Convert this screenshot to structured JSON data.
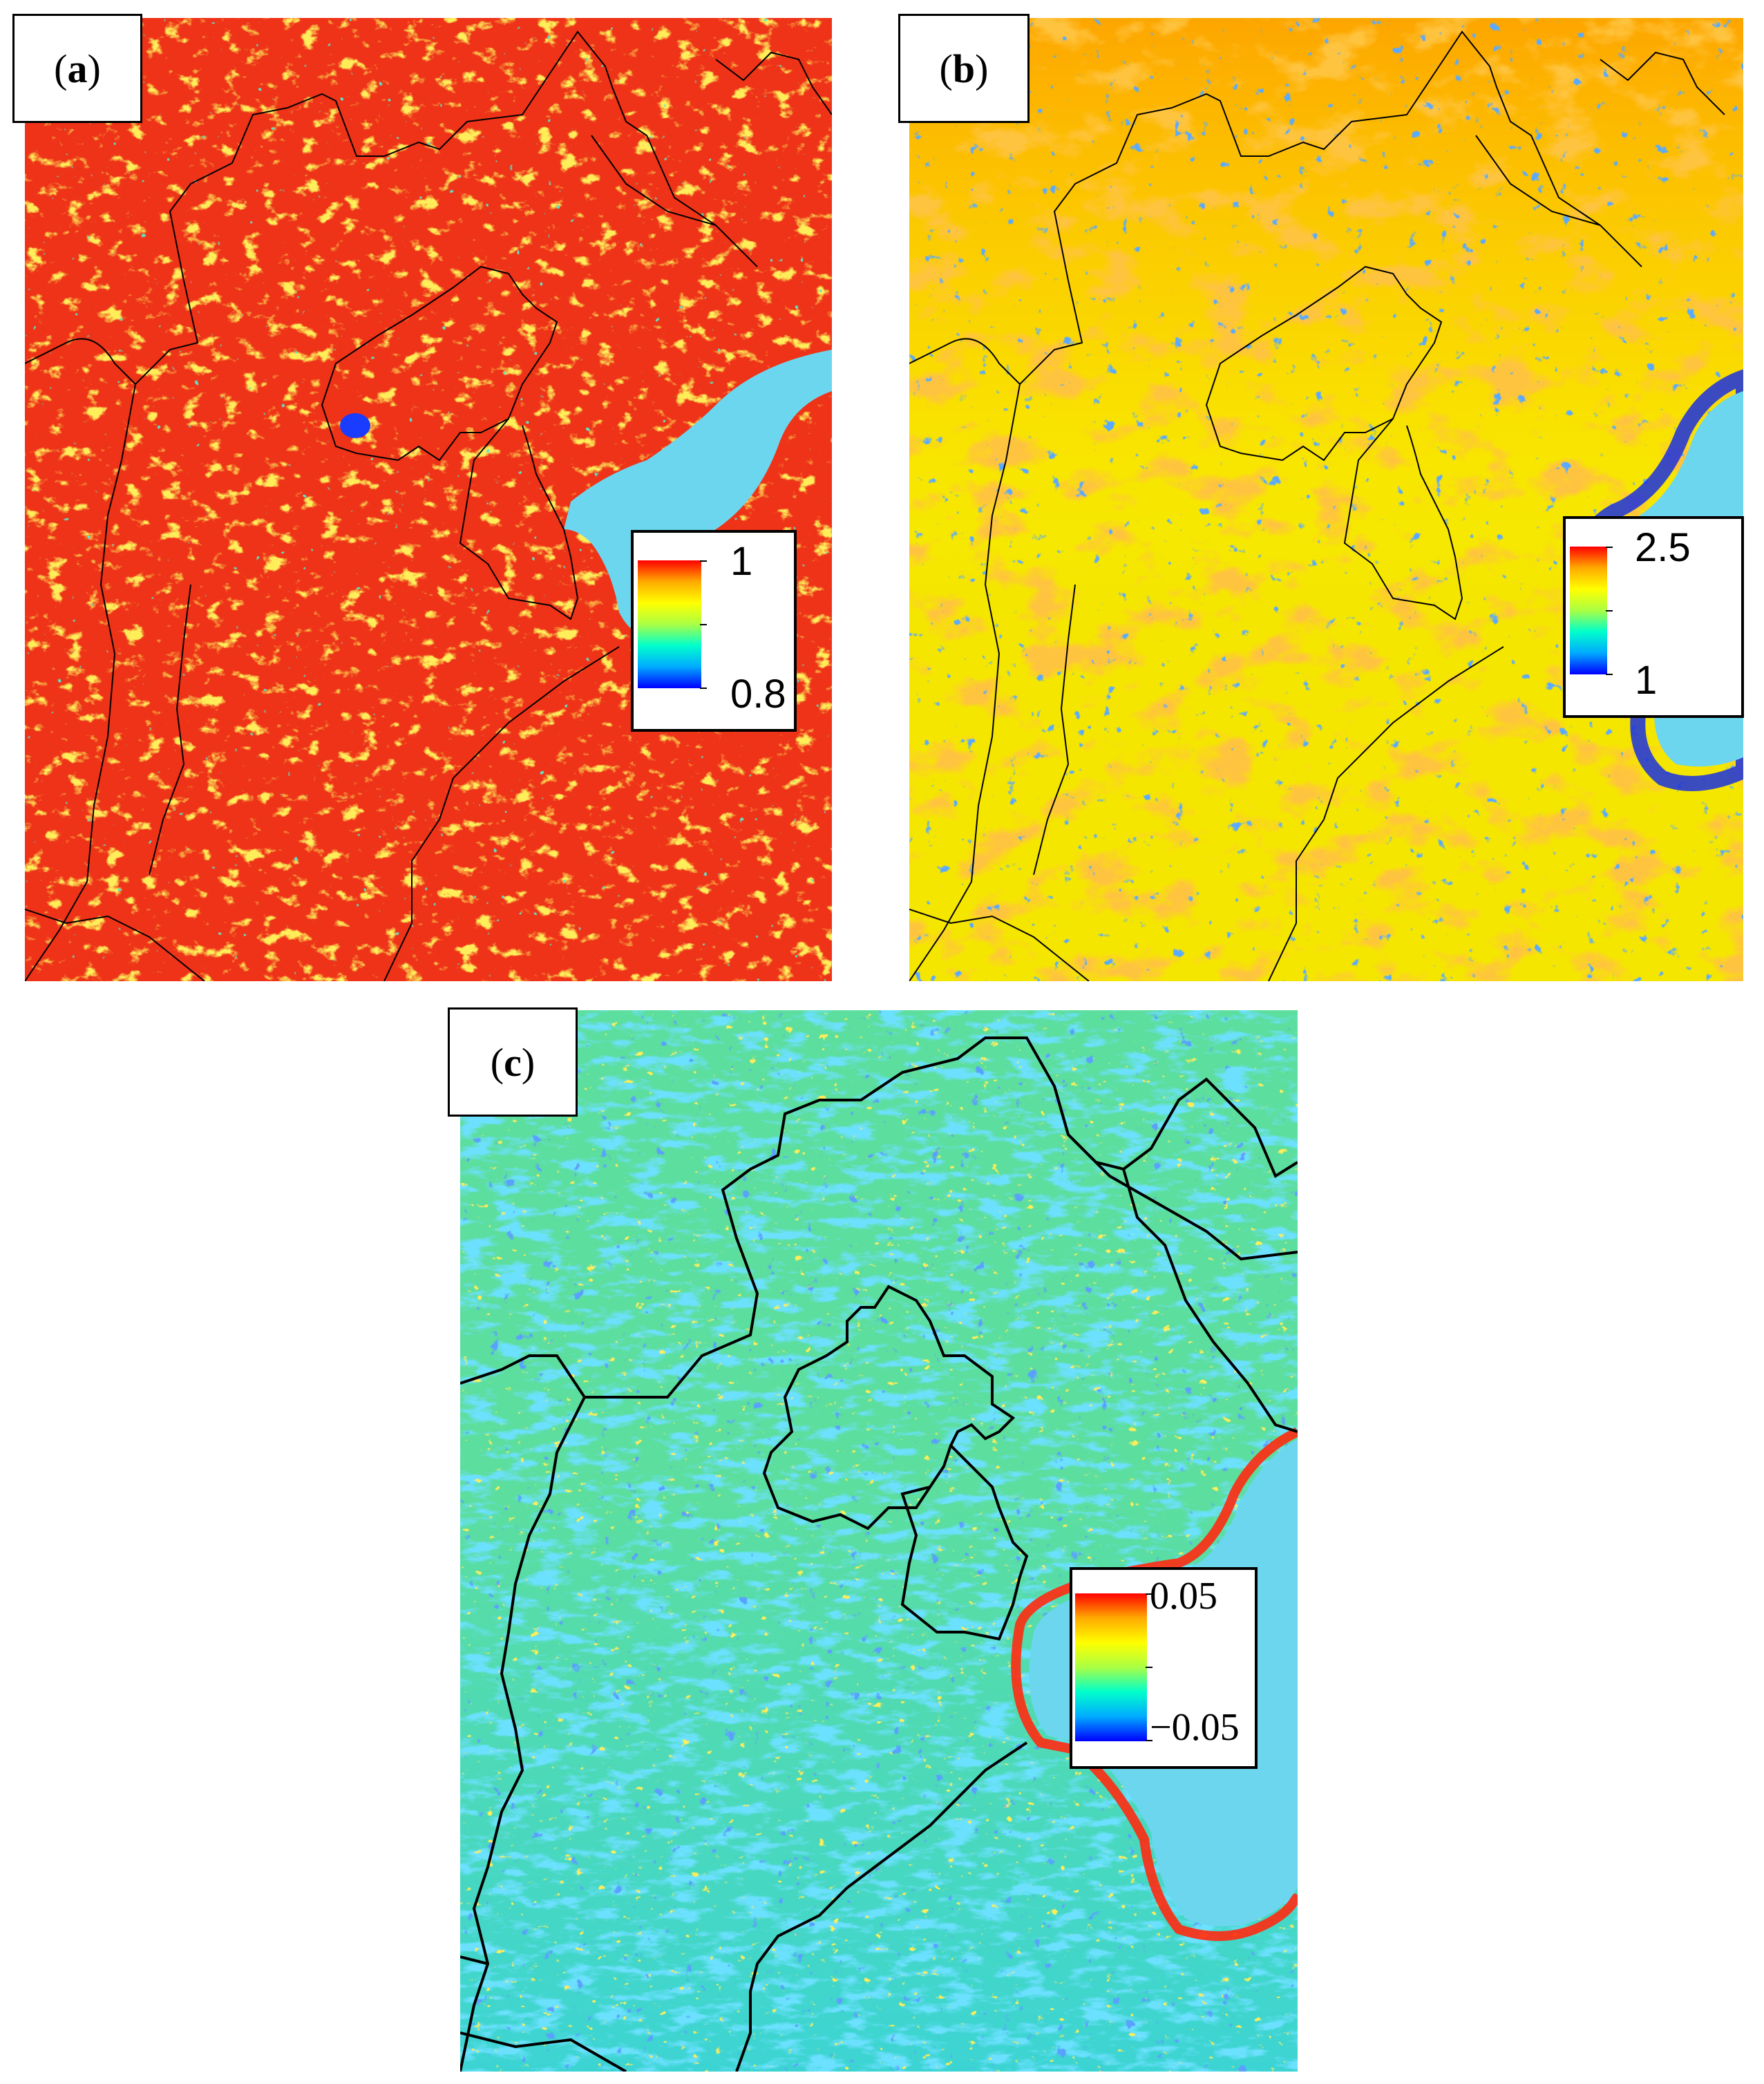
{
  "panels": {
    "a": {
      "label_letter": "a",
      "legend": {
        "max_label": "1",
        "min_label": "0.8"
      }
    },
    "b": {
      "label_letter": "b",
      "legend": {
        "max_label": "2.5",
        "min_label": "1"
      }
    },
    "c": {
      "label_letter": "c",
      "legend": {
        "max_label": "0.05",
        "min_label": "−0.05"
      }
    }
  },
  "colors": {
    "sea": "#6cd6ee",
    "boundary": "#000000",
    "colormap": [
      "#0000ff",
      "#00aaff",
      "#00ffcc",
      "#aaff44",
      "#ffff00",
      "#ffaa00",
      "#ff0000"
    ]
  }
}
